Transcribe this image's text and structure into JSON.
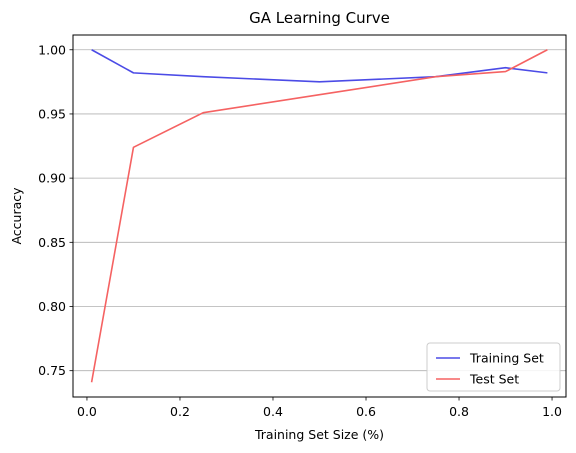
{
  "chart_data": {
    "type": "line",
    "title": "GA Learning Curve",
    "xlabel": "Training Set Size (%)",
    "ylabel": "Accuracy",
    "xlim": [
      -0.03,
      1.03
    ],
    "ylim": [
      0.7295,
      1.0115
    ],
    "xticks": [
      0.0,
      0.2,
      0.4,
      0.6,
      0.8,
      1.0
    ],
    "xtick_labels": [
      "0.0",
      "0.2",
      "0.4",
      "0.6",
      "0.8",
      "1.0"
    ],
    "yticks": [
      0.75,
      0.8,
      0.85,
      0.9,
      0.95,
      1.0
    ],
    "ytick_labels": [
      "0.75",
      "0.80",
      "0.85",
      "0.90",
      "0.95",
      "1.00"
    ],
    "grid": "y-axis",
    "legend_position": "lower right",
    "series": [
      {
        "name": "Training Set",
        "color": "#4b4be6",
        "x": [
          0.01,
          0.1,
          0.25,
          0.5,
          0.75,
          0.9,
          0.99
        ],
        "y": [
          1.0,
          0.982,
          0.979,
          0.975,
          0.979,
          0.986,
          0.982
        ]
      },
      {
        "name": "Test Set",
        "color": "#f56262",
        "x": [
          0.01,
          0.1,
          0.25,
          0.5,
          0.75,
          0.9,
          0.99
        ],
        "y": [
          0.741,
          0.924,
          0.951,
          0.965,
          0.979,
          0.983,
          1.0
        ]
      }
    ]
  }
}
